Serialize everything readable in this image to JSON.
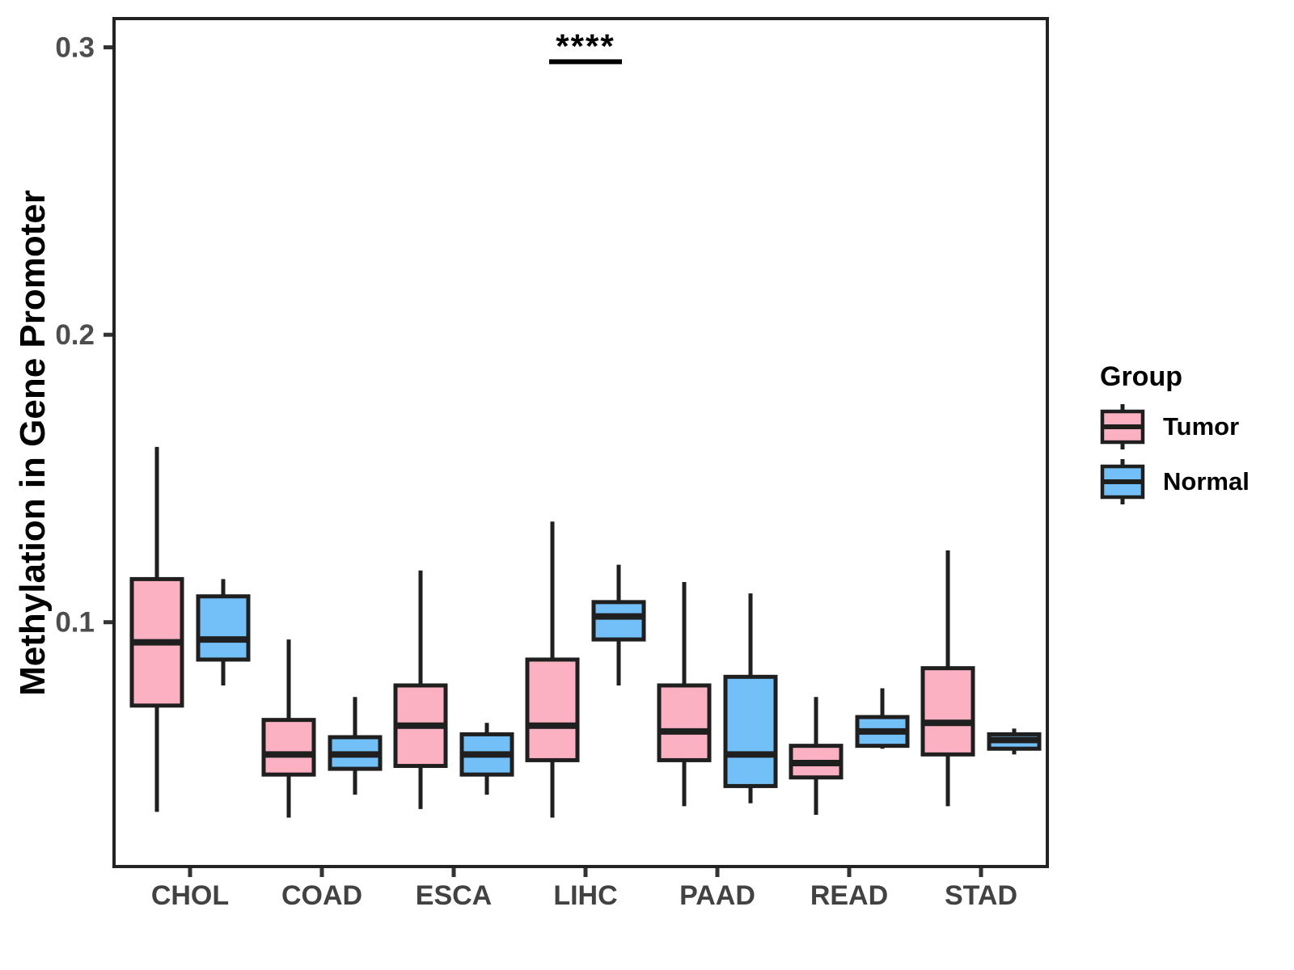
{
  "chart_data": {
    "type": "boxplot",
    "title": "",
    "xlabel": "",
    "ylabel": "Methylation in Gene Promoter",
    "legend_title": "Group",
    "legend_position": "right",
    "grid": false,
    "background": "#FFFFFF",
    "categories": [
      "CHOL",
      "COAD",
      "ESCA",
      "LIHC",
      "PAAD",
      "READ",
      "STAD"
    ],
    "ylim": [
      0.015,
      0.31
    ],
    "ytick_values": [
      0.1,
      0.2,
      0.3
    ],
    "ytick_labels": [
      "0.1",
      "0.2",
      "0.3"
    ],
    "box_stat_order": [
      "min",
      "q1",
      "median",
      "q3",
      "max"
    ],
    "series": [
      {
        "name": "Tumor",
        "color": "#FCB1C3",
        "values": [
          [
            0.034,
            0.071,
            0.093,
            0.115,
            0.161
          ],
          [
            0.032,
            0.047,
            0.054,
            0.066,
            0.094
          ],
          [
            0.035,
            0.05,
            0.064,
            0.078,
            0.118
          ],
          [
            0.032,
            0.052,
            0.064,
            0.087,
            0.135
          ],
          [
            0.036,
            0.052,
            0.062,
            0.078,
            0.114
          ],
          [
            0.033,
            0.046,
            0.051,
            0.057,
            0.074
          ],
          [
            0.036,
            0.054,
            0.065,
            0.084,
            0.125
          ]
        ]
      },
      {
        "name": "Normal",
        "color": "#73BFF7",
        "values": [
          [
            0.078,
            0.087,
            0.094,
            0.109,
            0.115
          ],
          [
            0.04,
            0.049,
            0.054,
            0.06,
            0.074
          ],
          [
            0.04,
            0.047,
            0.054,
            0.061,
            0.065
          ],
          [
            0.078,
            0.094,
            0.102,
            0.107,
            0.12
          ],
          [
            0.037,
            0.043,
            0.054,
            0.081,
            0.11
          ],
          [
            0.056,
            0.057,
            0.062,
            0.067,
            0.077
          ],
          [
            0.054,
            0.056,
            0.059,
            0.061,
            0.063
          ]
        ]
      }
    ],
    "annotations": [
      {
        "text": "****",
        "category": "LIHC",
        "y": 0.295
      }
    ],
    "colors": {
      "box_border": "#1F1F1F",
      "tick_mark": "#333333",
      "axis_text": "#4D4D4D",
      "axis_title": "#000000",
      "panel_border": "#222222",
      "significance": "#000000"
    }
  }
}
